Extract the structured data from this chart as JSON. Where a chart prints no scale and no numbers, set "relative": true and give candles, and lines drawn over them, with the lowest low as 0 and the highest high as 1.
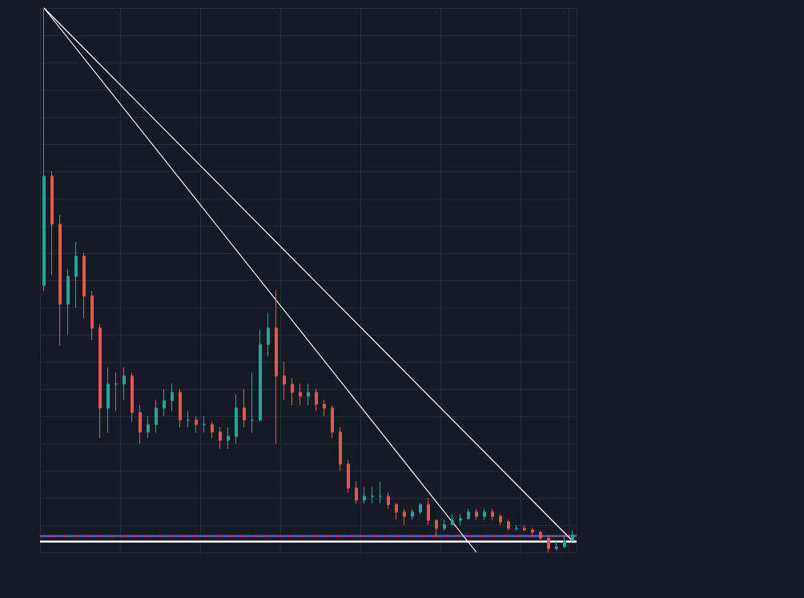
{
  "chart_data": {
    "type": "candlestick",
    "relative": true,
    "grid": true,
    "categories": [
      null,
      null,
      null,
      null,
      null,
      null,
      null,
      null,
      null,
      null,
      null,
      null,
      null,
      null,
      null,
      null,
      null,
      null,
      null,
      null,
      null,
      null,
      null,
      null,
      null,
      null,
      null,
      null,
      null,
      null,
      null,
      null,
      null,
      null,
      null,
      null,
      null,
      null,
      null,
      null,
      null,
      null,
      null,
      null,
      null,
      null,
      null,
      null,
      null,
      null,
      null,
      null,
      null,
      null,
      null,
      null,
      null,
      null,
      null,
      null,
      null,
      null,
      null,
      null,
      null,
      null,
      null
    ],
    "series": [
      {
        "ohlc": [
          [
            0.49,
            1.0,
            0.48,
            0.691
          ],
          [
            0.691,
            0.7,
            0.51,
            0.603
          ],
          [
            0.603,
            0.62,
            0.38,
            0.456
          ],
          [
            0.456,
            0.52,
            0.4,
            0.507
          ],
          [
            0.507,
            0.57,
            0.45,
            0.544
          ],
          [
            0.544,
            0.55,
            0.43,
            0.471
          ],
          [
            0.471,
            0.48,
            0.39,
            0.412
          ],
          [
            0.412,
            0.42,
            0.21,
            0.265
          ],
          [
            0.265,
            0.34,
            0.22,
            0.309
          ],
          [
            0.309,
            0.33,
            0.26,
            0.309
          ],
          [
            0.309,
            0.34,
            0.28,
            0.324
          ],
          [
            0.324,
            0.33,
            0.24,
            0.257
          ],
          [
            0.257,
            0.27,
            0.2,
            0.221
          ],
          [
            0.221,
            0.25,
            0.21,
            0.235
          ],
          [
            0.235,
            0.28,
            0.22,
            0.265
          ],
          [
            0.265,
            0.3,
            0.25,
            0.279
          ],
          [
            0.279,
            0.31,
            0.26,
            0.294
          ],
          [
            0.294,
            0.3,
            0.23,
            0.243
          ],
          [
            0.243,
            0.26,
            0.23,
            0.243
          ],
          [
            0.243,
            0.25,
            0.22,
            0.235
          ],
          [
            0.235,
            0.25,
            0.22,
            0.235
          ],
          [
            0.235,
            0.24,
            0.21,
            0.221
          ],
          [
            0.221,
            0.23,
            0.19,
            0.206
          ],
          [
            0.206,
            0.23,
            0.19,
            0.213
          ],
          [
            0.213,
            0.29,
            0.2,
            0.265
          ],
          [
            0.265,
            0.3,
            0.23,
            0.243
          ],
          [
            0.243,
            0.33,
            0.22,
            0.243
          ],
          [
            0.243,
            0.41,
            0.24,
            0.382
          ],
          [
            0.382,
            0.44,
            0.36,
            0.412
          ],
          [
            0.412,
            0.482,
            0.2,
            0.324
          ],
          [
            0.324,
            0.35,
            0.28,
            0.309
          ],
          [
            0.309,
            0.32,
            0.27,
            0.294
          ],
          [
            0.294,
            0.31,
            0.27,
            0.287
          ],
          [
            0.287,
            0.31,
            0.27,
            0.294
          ],
          [
            0.294,
            0.3,
            0.26,
            0.272
          ],
          [
            0.272,
            0.28,
            0.25,
            0.265
          ],
          [
            0.265,
            0.27,
            0.21,
            0.221
          ],
          [
            0.221,
            0.23,
            0.15,
            0.162
          ],
          [
            0.162,
            0.17,
            0.11,
            0.118
          ],
          [
            0.118,
            0.13,
            0.09,
            0.096
          ],
          [
            0.096,
            0.12,
            0.09,
            0.103
          ],
          [
            0.103,
            0.12,
            0.09,
            0.103
          ],
          [
            0.103,
            0.13,
            0.09,
            0.103
          ],
          [
            0.103,
            0.11,
            0.08,
            0.088
          ],
          [
            0.088,
            0.09,
            0.06,
            0.074
          ],
          [
            0.074,
            0.08,
            0.05,
            0.066
          ],
          [
            0.066,
            0.08,
            0.06,
            0.074
          ],
          [
            0.074,
            0.09,
            0.07,
            0.088
          ],
          [
            0.088,
            0.1,
            0.05,
            0.059
          ],
          [
            0.059,
            0.06,
            0.03,
            0.044
          ],
          [
            0.044,
            0.06,
            0.04,
            0.051
          ],
          [
            0.051,
            0.07,
            0.05,
            0.059
          ],
          [
            0.059,
            0.07,
            0.05,
            0.062
          ],
          [
            0.062,
            0.08,
            0.06,
            0.074
          ],
          [
            0.074,
            0.08,
            0.06,
            0.066
          ],
          [
            0.066,
            0.08,
            0.06,
            0.074
          ],
          [
            0.074,
            0.08,
            0.06,
            0.066
          ],
          [
            0.066,
            0.07,
            0.05,
            0.056
          ],
          [
            0.056,
            0.06,
            0.04,
            0.044
          ],
          [
            0.044,
            0.05,
            0.04,
            0.044
          ],
          [
            0.044,
            0.05,
            0.04,
            0.041
          ],
          [
            0.041,
            0.045,
            0.03,
            0.037
          ],
          [
            0.037,
            0.04,
            0.02,
            0.026
          ],
          [
            0.026,
            0.03,
            0.0,
            0.007
          ],
          [
            0.007,
            0.02,
            0.003,
            0.01
          ],
          [
            0.01,
            0.03,
            0.008,
            0.022
          ],
          [
            0.022,
            0.04,
            0.02,
            0.032
          ]
        ],
        "colors": [
          "#26a69a",
          "#ef5350",
          "#ef5350",
          "#26a69a",
          "#26a69a",
          "#ef5350",
          "#ef5350",
          "#ef5350",
          "#26a69a",
          "#26a69a",
          "#26a69a",
          "#ef5350",
          "#ef5350",
          "#26a69a",
          "#26a69a",
          "#26a69a",
          "#26a69a",
          "#ef5350",
          "#26a69a",
          "#ef5350",
          "#26a69a",
          "#ef5350",
          "#ef5350",
          "#26a69a",
          "#26a69a",
          "#ef5350",
          "#26a69a",
          "#26a69a",
          "#26a69a",
          "#ef5350",
          "#ef5350",
          "#ef5350",
          "#ef5350",
          "#26a69a",
          "#ef5350",
          "#ef5350",
          "#ef5350",
          "#ef5350",
          "#ef5350",
          "#ef5350",
          "#26a69a",
          "#26a69a",
          "#26a69a",
          "#ef5350",
          "#ef5350",
          "#ef5350",
          "#26a69a",
          "#26a69a",
          "#ef5350",
          "#ef5350",
          "#26a69a",
          "#26a69a",
          "#26a69a",
          "#26a69a",
          "#ef5350",
          "#26a69a",
          "#ef5350",
          "#ef5350",
          "#ef5350",
          "#26a69a",
          "#ef5350",
          "#ef5350",
          "#ef5350",
          "#ef5350",
          "#26a69a",
          "#26a69a",
          "#26a69a"
        ]
      },
      {
        "type": "line",
        "color": "#ffffff",
        "values": [
          1.0,
          null,
          null,
          null,
          null,
          null,
          null,
          null,
          null,
          null,
          null,
          null,
          null,
          null,
          null,
          null,
          null,
          null,
          null,
          null,
          null,
          null,
          null,
          null,
          null,
          null,
          null,
          null,
          null,
          null,
          null,
          null,
          null,
          null,
          null,
          null,
          null,
          null,
          null,
          null,
          null,
          null,
          null,
          null,
          null,
          null,
          null,
          null,
          null,
          null,
          null,
          null,
          null,
          null,
          0.0,
          null,
          null,
          null,
          null,
          null,
          null,
          null,
          null,
          null,
          null,
          null,
          null
        ]
      },
      {
        "type": "line",
        "color": "#ffffff",
        "values": [
          1.0,
          null,
          null,
          null,
          null,
          null,
          null,
          null,
          null,
          null,
          null,
          null,
          null,
          null,
          null,
          null,
          null,
          null,
          null,
          null,
          null,
          null,
          null,
          null,
          null,
          null,
          null,
          null,
          null,
          null,
          null,
          null,
          null,
          null,
          null,
          null,
          null,
          null,
          null,
          null,
          null,
          null,
          null,
          null,
          null,
          null,
          null,
          null,
          null,
          null,
          null,
          null,
          null,
          null,
          null,
          null,
          null,
          null,
          null,
          null,
          null,
          null,
          null,
          null,
          null,
          null,
          0.021
        ]
      }
    ],
    "ref_lines": [
      {
        "axis": "y",
        "value": 0.034,
        "color": "#2962ff",
        "line_style": "solid"
      },
      {
        "axis": "y",
        "value": 0.032,
        "color": "#f23645",
        "line_style": "dotted"
      },
      {
        "axis": "y",
        "value": 0.022,
        "color": "#ffffff",
        "line_style": "solid"
      }
    ]
  }
}
